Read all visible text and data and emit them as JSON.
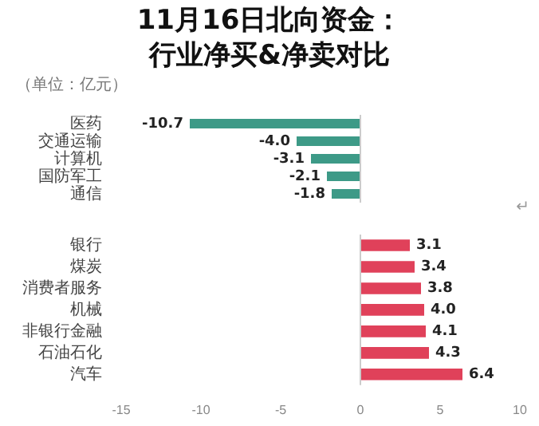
{
  "chart_data": [
    {
      "type": "bar",
      "title": "11月16日北向资金：行业净买&净卖对比",
      "subtitle": "（单位：亿元）",
      "orientation": "horizontal",
      "categories": [
        "医药",
        "交通运输",
        "计算机",
        "国防军工",
        "通信"
      ],
      "values": [
        -10.7,
        -4.0,
        -3.1,
        -2.1,
        -1.8
      ],
      "value_labels": [
        "-10.7",
        "-4.0",
        "-3.1",
        "-2.1",
        "-1.8"
      ],
      "color": "#3d9a87",
      "tick_labels": "y",
      "annotations": [
        "↵"
      ]
    },
    {
      "type": "bar",
      "orientation": "horizontal",
      "categories": [
        "银行",
        "煤炭",
        "消费者服务",
        "机械",
        "非银行金融",
        "石油石化",
        "汽车"
      ],
      "values": [
        3.1,
        3.4,
        3.8,
        4.0,
        4.1,
        4.3,
        6.4
      ],
      "value_labels": [
        "3.1",
        "3.4",
        "3.8",
        "4.0",
        "4.1",
        "4.3",
        "6.4"
      ],
      "color": "#e0415a",
      "xlim": [
        -15,
        10
      ],
      "xticks": [
        -15,
        -10,
        -5,
        0,
        5,
        10
      ]
    }
  ]
}
